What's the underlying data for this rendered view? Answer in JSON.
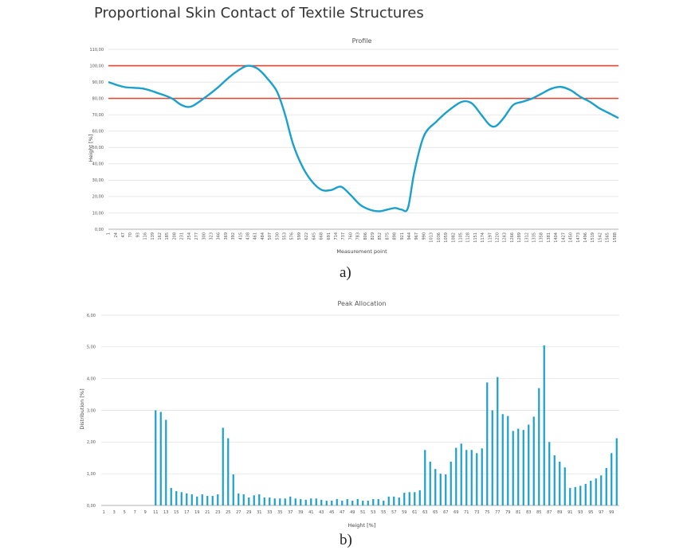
{
  "figure": {
    "title": "Proportional Skin Contact of Textile Structures",
    "caption_a": "a)",
    "caption_b": "b)"
  },
  "colors": {
    "series": "#1aa0cc",
    "reference": "#e8432e",
    "grid": "#dddddd",
    "axis": "#999999"
  },
  "chart_data": [
    {
      "type": "line",
      "title": "Profile",
      "xlabel": "Measurement point",
      "ylabel": "Height [%]",
      "ylim": [
        0,
        110
      ],
      "yticks": [
        "0,00",
        "10,00",
        "20,00",
        "30,00",
        "40,00",
        "50,00",
        "60,00",
        "70,00",
        "80,00",
        "90,00",
        "100,00",
        "110,00"
      ],
      "grid": true,
      "xticks": [
        "1",
        "24",
        "47",
        "70",
        "93",
        "116",
        "139",
        "162",
        "185",
        "208",
        "231",
        "254",
        "277",
        "300",
        "323",
        "346",
        "369",
        "392",
        "415",
        "438",
        "461",
        "484",
        "507",
        "530",
        "553",
        "576",
        "599",
        "622",
        "645",
        "668",
        "691",
        "714",
        "737",
        "760",
        "783",
        "806",
        "829",
        "852",
        "875",
        "898",
        "921",
        "944",
        "967",
        "990",
        "1013",
        "1036",
        "1059",
        "1082",
        "1105",
        "1128",
        "1151",
        "1174",
        "1197",
        "1220",
        "1243",
        "1266",
        "1289",
        "1312",
        "1335",
        "1358",
        "1381",
        "1404",
        "1427",
        "1450",
        "1473",
        "1496",
        "1519",
        "1542",
        "1565",
        "1588"
      ],
      "reference_lines": [
        100,
        80
      ],
      "series": [
        {
          "x": [
            1,
            50,
            110,
            160,
            200,
            230,
            260,
            300,
            340,
            380,
            415,
            440,
            470,
            500,
            530,
            555,
            580,
            610,
            640,
            670,
            700,
            730,
            760,
            790,
            820,
            850,
            875,
            900,
            920,
            940,
            960,
            990,
            1030,
            1070,
            1110,
            1140,
            1170,
            1195,
            1215,
            1240,
            1270,
            1300,
            1330,
            1360,
            1390,
            1420,
            1450,
            1480,
            1510,
            1540,
            1570,
            1600
          ],
          "y": [
            90,
            87,
            86,
            83,
            80,
            76,
            75,
            80,
            86,
            93,
            98,
            100,
            98,
            92,
            84,
            70,
            52,
            38,
            29,
            24,
            24,
            26,
            21,
            15,
            12,
            11,
            12,
            13,
            12,
            13,
            35,
            57,
            66,
            73,
            78,
            77,
            70,
            64,
            63,
            68,
            76,
            78,
            80,
            83,
            86,
            87,
            85,
            81,
            78,
            74,
            71,
            68
          ]
        }
      ]
    },
    {
      "type": "bar",
      "title": "Peak Allocation",
      "xlabel": "Height [%]",
      "ylabel": "Distribution [%]",
      "ylim": [
        0,
        6
      ],
      "yticks": [
        "0,00",
        "1,00",
        "2,00",
        "3,00",
        "4,00",
        "5,00",
        "6,00"
      ],
      "grid": true,
      "xticks": [
        "1",
        "3",
        "5",
        "7",
        "9",
        "11",
        "13",
        "15",
        "17",
        "19",
        "21",
        "23",
        "25",
        "27",
        "29",
        "31",
        "33",
        "35",
        "37",
        "39",
        "41",
        "43",
        "45",
        "47",
        "49",
        "51",
        "53",
        "55",
        "57",
        "59",
        "61",
        "63",
        "65",
        "67",
        "69",
        "71",
        "73",
        "75",
        "77",
        "79",
        "81",
        "83",
        "85",
        "87",
        "89",
        "91",
        "93",
        "95",
        "97",
        "99"
      ],
      "categories": [
        1,
        2,
        3,
        4,
        5,
        6,
        7,
        8,
        9,
        10,
        11,
        12,
        13,
        14,
        15,
        16,
        17,
        18,
        19,
        20,
        21,
        22,
        23,
        24,
        25,
        26,
        27,
        28,
        29,
        30,
        31,
        32,
        33,
        34,
        35,
        36,
        37,
        38,
        39,
        40,
        41,
        42,
        43,
        44,
        45,
        46,
        47,
        48,
        49,
        50,
        51,
        52,
        53,
        54,
        55,
        56,
        57,
        58,
        59,
        60,
        61,
        62,
        63,
        64,
        65,
        66,
        67,
        68,
        69,
        70,
        71,
        72,
        73,
        74,
        75,
        76,
        77,
        78,
        79,
        80,
        81,
        82,
        83,
        84,
        85,
        86,
        87,
        88,
        89,
        90,
        91,
        92,
        93,
        94,
        95,
        96,
        97,
        98,
        99,
        100
      ],
      "values": [
        0,
        0,
        0,
        0,
        0,
        0,
        0,
        0,
        0,
        0,
        3.0,
        2.95,
        2.7,
        0.55,
        0.45,
        0.42,
        0.38,
        0.35,
        0.28,
        0.35,
        0.3,
        0.3,
        0.35,
        2.45,
        2.12,
        0.98,
        0.38,
        0.35,
        0.25,
        0.32,
        0.35,
        0.25,
        0.25,
        0.22,
        0.22,
        0.22,
        0.28,
        0.22,
        0.2,
        0.18,
        0.22,
        0.22,
        0.18,
        0.15,
        0.15,
        0.2,
        0.15,
        0.2,
        0.15,
        0.2,
        0.15,
        0.15,
        0.2,
        0.2,
        0.15,
        0.28,
        0.28,
        0.25,
        0.4,
        0.42,
        0.42,
        0.48,
        1.75,
        1.38,
        1.15,
        1.0,
        0.98,
        1.38,
        1.82,
        1.95,
        1.75,
        1.75,
        1.65,
        1.8,
        3.88,
        3.0,
        4.05,
        2.88,
        2.82,
        2.35,
        2.42,
        2.38,
        2.55,
        2.8,
        3.7,
        5.05,
        2.0,
        1.58,
        1.38,
        1.2,
        0.55,
        0.58,
        0.62,
        0.68,
        0.78,
        0.85,
        0.95,
        1.18,
        1.65,
        2.12
      ]
    }
  ]
}
